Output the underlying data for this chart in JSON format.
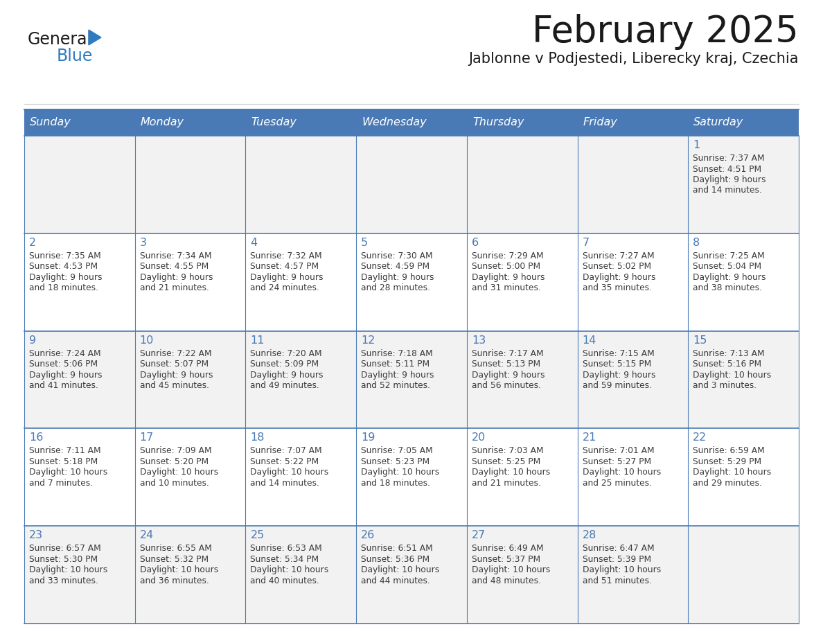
{
  "title": "February 2025",
  "subtitle": "Jablonne v Podjestedi, Liberecky kraj, Czechia",
  "days_of_week": [
    "Sunday",
    "Monday",
    "Tuesday",
    "Wednesday",
    "Thursday",
    "Friday",
    "Saturday"
  ],
  "header_bg": "#4a7ab5",
  "header_text": "#FFFFFF",
  "row_bg_light": "#f2f2f2",
  "row_bg_white": "#FFFFFF",
  "cell_border": "#4a7ab5",
  "day_number_color": "#4a7ab5",
  "info_text_color": "#3a3a3a",
  "title_color": "#1a1a1a",
  "subtitle_color": "#1a1a1a",
  "logo_general_color": "#1a1a1a",
  "logo_blue_color": "#2e7bbf",
  "calendar_data": [
    [
      null,
      null,
      null,
      null,
      null,
      null,
      {
        "day": 1,
        "sunrise": "7:37 AM",
        "sunset": "4:51 PM",
        "daylight": "9 hours and 14 minutes."
      }
    ],
    [
      {
        "day": 2,
        "sunrise": "7:35 AM",
        "sunset": "4:53 PM",
        "daylight": "9 hours and 18 minutes."
      },
      {
        "day": 3,
        "sunrise": "7:34 AM",
        "sunset": "4:55 PM",
        "daylight": "9 hours and 21 minutes."
      },
      {
        "day": 4,
        "sunrise": "7:32 AM",
        "sunset": "4:57 PM",
        "daylight": "9 hours and 24 minutes."
      },
      {
        "day": 5,
        "sunrise": "7:30 AM",
        "sunset": "4:59 PM",
        "daylight": "9 hours and 28 minutes."
      },
      {
        "day": 6,
        "sunrise": "7:29 AM",
        "sunset": "5:00 PM",
        "daylight": "9 hours and 31 minutes."
      },
      {
        "day": 7,
        "sunrise": "7:27 AM",
        "sunset": "5:02 PM",
        "daylight": "9 hours and 35 minutes."
      },
      {
        "day": 8,
        "sunrise": "7:25 AM",
        "sunset": "5:04 PM",
        "daylight": "9 hours and 38 minutes."
      }
    ],
    [
      {
        "day": 9,
        "sunrise": "7:24 AM",
        "sunset": "5:06 PM",
        "daylight": "9 hours and 41 minutes."
      },
      {
        "day": 10,
        "sunrise": "7:22 AM",
        "sunset": "5:07 PM",
        "daylight": "9 hours and 45 minutes."
      },
      {
        "day": 11,
        "sunrise": "7:20 AM",
        "sunset": "5:09 PM",
        "daylight": "9 hours and 49 minutes."
      },
      {
        "day": 12,
        "sunrise": "7:18 AM",
        "sunset": "5:11 PM",
        "daylight": "9 hours and 52 minutes."
      },
      {
        "day": 13,
        "sunrise": "7:17 AM",
        "sunset": "5:13 PM",
        "daylight": "9 hours and 56 minutes."
      },
      {
        "day": 14,
        "sunrise": "7:15 AM",
        "sunset": "5:15 PM",
        "daylight": "9 hours and 59 minutes."
      },
      {
        "day": 15,
        "sunrise": "7:13 AM",
        "sunset": "5:16 PM",
        "daylight": "10 hours and 3 minutes."
      }
    ],
    [
      {
        "day": 16,
        "sunrise": "7:11 AM",
        "sunset": "5:18 PM",
        "daylight": "10 hours and 7 minutes."
      },
      {
        "day": 17,
        "sunrise": "7:09 AM",
        "sunset": "5:20 PM",
        "daylight": "10 hours and 10 minutes."
      },
      {
        "day": 18,
        "sunrise": "7:07 AM",
        "sunset": "5:22 PM",
        "daylight": "10 hours and 14 minutes."
      },
      {
        "day": 19,
        "sunrise": "7:05 AM",
        "sunset": "5:23 PM",
        "daylight": "10 hours and 18 minutes."
      },
      {
        "day": 20,
        "sunrise": "7:03 AM",
        "sunset": "5:25 PM",
        "daylight": "10 hours and 21 minutes."
      },
      {
        "day": 21,
        "sunrise": "7:01 AM",
        "sunset": "5:27 PM",
        "daylight": "10 hours and 25 minutes."
      },
      {
        "day": 22,
        "sunrise": "6:59 AM",
        "sunset": "5:29 PM",
        "daylight": "10 hours and 29 minutes."
      }
    ],
    [
      {
        "day": 23,
        "sunrise": "6:57 AM",
        "sunset": "5:30 PM",
        "daylight": "10 hours and 33 minutes."
      },
      {
        "day": 24,
        "sunrise": "6:55 AM",
        "sunset": "5:32 PM",
        "daylight": "10 hours and 36 minutes."
      },
      {
        "day": 25,
        "sunrise": "6:53 AM",
        "sunset": "5:34 PM",
        "daylight": "10 hours and 40 minutes."
      },
      {
        "day": 26,
        "sunrise": "6:51 AM",
        "sunset": "5:36 PM",
        "daylight": "10 hours and 44 minutes."
      },
      {
        "day": 27,
        "sunrise": "6:49 AM",
        "sunset": "5:37 PM",
        "daylight": "10 hours and 48 minutes."
      },
      {
        "day": 28,
        "sunrise": "6:47 AM",
        "sunset": "5:39 PM",
        "daylight": "10 hours and 51 minutes."
      },
      null
    ]
  ],
  "fig_width": 11.88,
  "fig_height": 9.18,
  "dpi": 100
}
